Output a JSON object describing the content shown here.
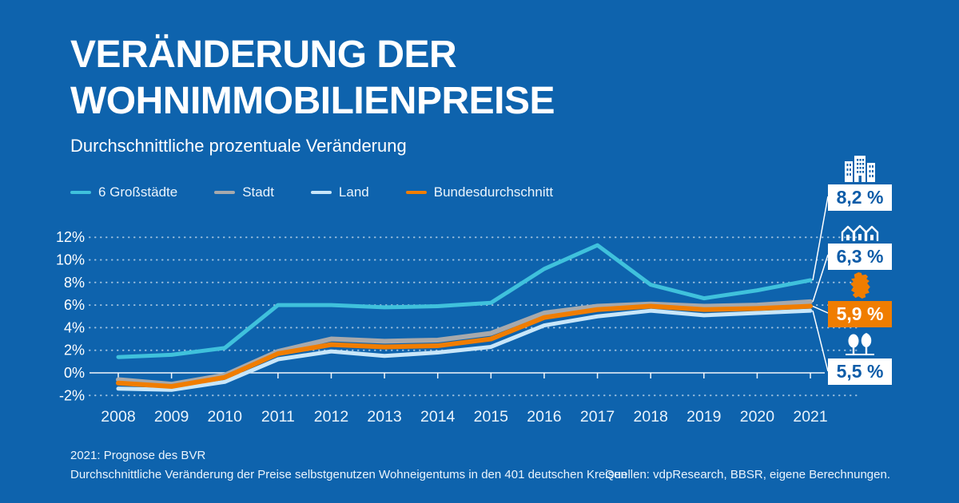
{
  "header": {
    "title_line1": "VERÄNDERUNG DER",
    "title_line2": "WOHNIMMOBILIENPREISE",
    "subtitle": "Durchschnittliche prozentuale Veränderung"
  },
  "colors": {
    "background": "#0e63ad",
    "accent_orange": "#f07d00",
    "callout_text_blue": "#0d5ca8",
    "line_cyan": "#3fc1dc",
    "line_gray": "#a7a9ac",
    "line_lightblue": "#c8e6f9",
    "grid_white": "#ffffff"
  },
  "chart_data": {
    "type": "line",
    "x": [
      2008,
      2009,
      2010,
      2011,
      2012,
      2013,
      2014,
      2015,
      2016,
      2017,
      2018,
      2019,
      2020,
      2021
    ],
    "series": [
      {
        "name": "6 Großstädte",
        "color": "#3fc1dc",
        "values": [
          1.4,
          1.6,
          2.2,
          6.0,
          6.0,
          5.8,
          5.9,
          6.2,
          9.2,
          11.3,
          7.8,
          6.6,
          7.3,
          8.2
        ]
      },
      {
        "name": "Stadt",
        "color": "#a7a9ac",
        "values": [
          -0.6,
          -1.0,
          -0.2,
          1.9,
          3.0,
          2.8,
          2.9,
          3.5,
          5.3,
          5.9,
          6.1,
          5.9,
          6.0,
          6.3
        ]
      },
      {
        "name": "Land",
        "color": "#c8e6f9",
        "values": [
          -1.4,
          -1.5,
          -0.8,
          1.2,
          1.9,
          1.5,
          1.8,
          2.3,
          4.2,
          5.0,
          5.5,
          5.1,
          5.3,
          5.5
        ]
      },
      {
        "name": "Bundesdurchschnitt",
        "color": "#f07d00",
        "values": [
          -0.9,
          -1.2,
          -0.4,
          1.7,
          2.5,
          2.3,
          2.4,
          3.0,
          4.9,
          5.6,
          5.9,
          5.6,
          5.7,
          5.9
        ]
      }
    ],
    "ylim": [
      -2,
      12
    ],
    "y_ticks": [
      12,
      10,
      8,
      6,
      4,
      2,
      0,
      -2
    ],
    "y_tick_labels": [
      "12%",
      "10%",
      "8%",
      "6%",
      "4%",
      "2%",
      "0%",
      "-2%"
    ],
    "grid": "dotted horizontal lines, solid zero line with year tick marks",
    "legend_position": "top"
  },
  "callouts": [
    {
      "icon": "city-skyline-icon",
      "value": "8,2 %",
      "style": "white"
    },
    {
      "icon": "houses-icon",
      "value": "6,3 %",
      "style": "white"
    },
    {
      "icon": "germany-map-icon",
      "value": "5,9 %",
      "style": "orange"
    },
    {
      "icon": "trees-icon",
      "value": "5,5 %",
      "style": "white"
    }
  ],
  "footer": {
    "note1": "2021: Prognose des BVR",
    "note2": "Durchschnittliche Veränderung der Preise selbstgenutzen Wohneigentums in den 401 deutschen Kreisen",
    "sources": "Quellen: vdpResearch, BBSR, eigene Berechnungen."
  }
}
